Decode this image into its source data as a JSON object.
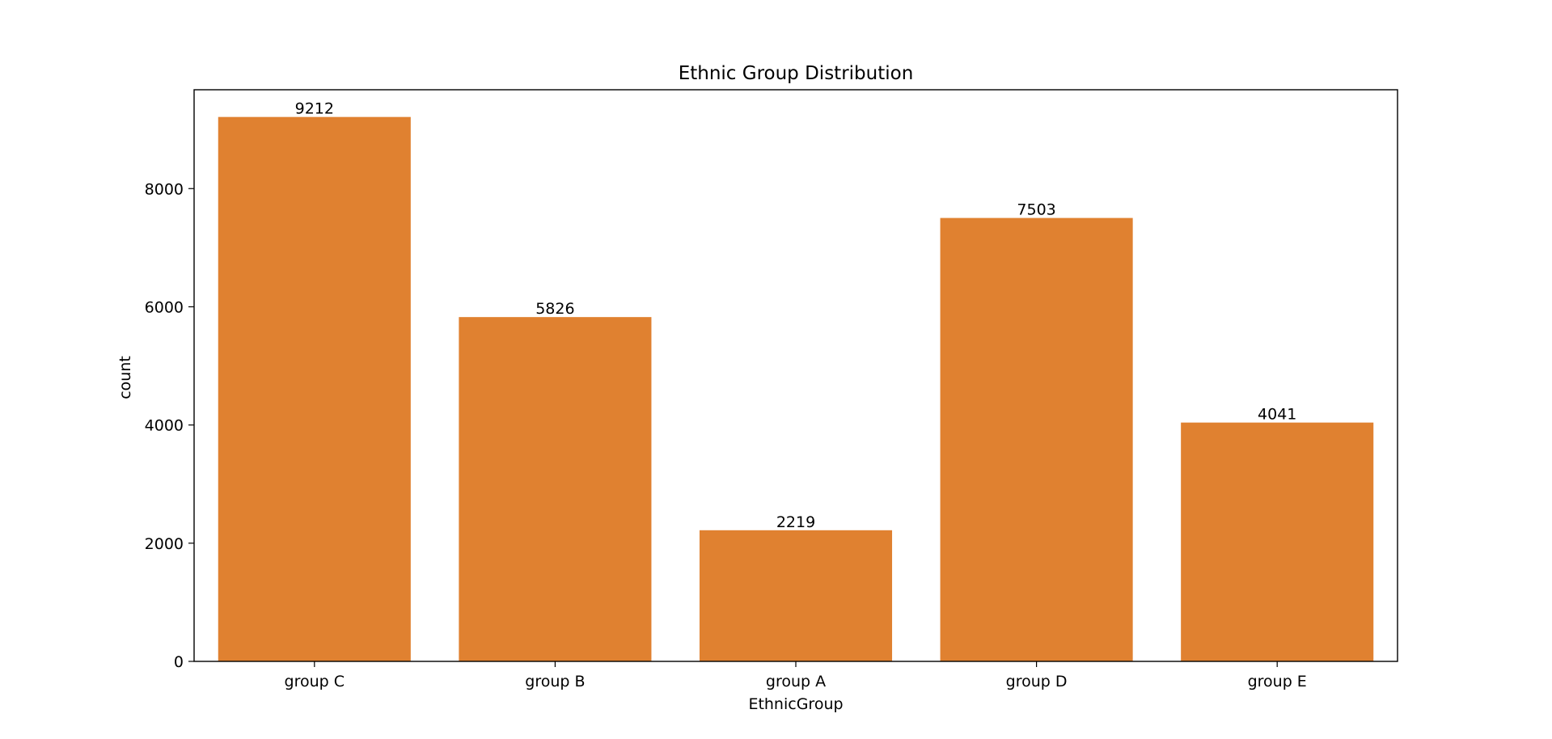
{
  "chart_data": {
    "type": "bar",
    "title": "Ethnic Group Distribution",
    "xlabel": "EthnicGroup",
    "ylabel": "count",
    "categories": [
      "group C",
      "group B",
      "group A",
      "group D",
      "group E"
    ],
    "values": [
      9212,
      5826,
      2219,
      7503,
      4041
    ],
    "data_labels": [
      "9212",
      "5826",
      "2219",
      "7503",
      "4041"
    ],
    "ylim": [
      0,
      9672.6
    ],
    "yticks": [
      0,
      2000,
      4000,
      6000,
      8000
    ],
    "ytick_labels": [
      "0",
      "2000",
      "4000",
      "6000",
      "8000"
    ],
    "grid": false,
    "legend": "none",
    "bar_color": "#e08130"
  }
}
